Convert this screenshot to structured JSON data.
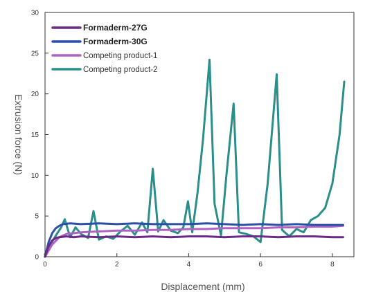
{
  "chart_data": {
    "type": "line",
    "xlabel": "Displacement (mm)",
    "ylabel": "Extrusion force (N)",
    "xlim": [
      0,
      8.6
    ],
    "ylim": [
      0,
      30
    ],
    "xticks": [
      "0",
      "2",
      "4",
      "6",
      "8"
    ],
    "yticks": [
      "0",
      "5",
      "10",
      "15",
      "20",
      "25",
      "30"
    ],
    "grid": false,
    "legend_position": "top-left",
    "series": [
      {
        "name": "Formaderm-27G",
        "color": "#6b2a86",
        "bold": true,
        "x": [
          0,
          0.1,
          0.2,
          0.3,
          0.4,
          0.6,
          0.8,
          1.0,
          1.5,
          2.0,
          2.5,
          3.0,
          3.5,
          4.0,
          4.5,
          5.0,
          5.5,
          6.0,
          6.5,
          7.0,
          7.5,
          8.0,
          8.3
        ],
        "y": [
          0,
          1.3,
          2.0,
          2.3,
          2.4,
          2.5,
          2.4,
          2.5,
          2.4,
          2.5,
          2.4,
          2.5,
          2.4,
          2.5,
          2.5,
          2.4,
          2.5,
          2.5,
          2.4,
          2.5,
          2.5,
          2.4,
          2.4
        ]
      },
      {
        "name": "Formaderm-30G",
        "color": "#2b4fa8",
        "bold": true,
        "x": [
          0,
          0.1,
          0.2,
          0.3,
          0.4,
          0.5,
          0.7,
          1.0,
          1.5,
          2.0,
          2.5,
          3.0,
          3.5,
          4.0,
          4.5,
          5.0,
          5.5,
          6.0,
          6.5,
          7.0,
          7.5,
          8.0,
          8.3
        ],
        "y": [
          0,
          1.8,
          2.9,
          3.5,
          3.8,
          4.0,
          4.1,
          4.0,
          4.1,
          4.0,
          4.1,
          4.0,
          4.0,
          4.0,
          4.1,
          4.0,
          3.9,
          4.0,
          3.9,
          4.0,
          3.9,
          3.9,
          3.9
        ]
      },
      {
        "name": "Competing product-1",
        "color": "#b062c4",
        "bold": false,
        "x": [
          0,
          0.2,
          0.4,
          0.6,
          1.0,
          1.5,
          2.0,
          2.5,
          3.0,
          3.5,
          4.0,
          4.5,
          5.0,
          5.5,
          6.0,
          6.5,
          7.0,
          7.5,
          8.0,
          8.3
        ],
        "y": [
          0,
          1.5,
          2.4,
          2.8,
          3.0,
          3.1,
          3.2,
          3.2,
          3.3,
          3.3,
          3.4,
          3.4,
          3.5,
          3.5,
          3.5,
          3.6,
          3.6,
          3.7,
          3.7,
          3.8
        ]
      },
      {
        "name": "Competing product-2",
        "color": "#2a8e8a",
        "bold": false,
        "x": [
          0,
          0.15,
          0.3,
          0.45,
          0.55,
          0.7,
          0.85,
          1.0,
          1.2,
          1.35,
          1.5,
          1.7,
          1.9,
          2.1,
          2.3,
          2.5,
          2.7,
          2.85,
          3.0,
          3.15,
          3.3,
          3.5,
          3.7,
          3.85,
          3.98,
          4.1,
          4.25,
          4.4,
          4.58,
          4.72,
          4.9,
          5.05,
          5.25,
          5.4,
          5.6,
          5.8,
          6.0,
          6.2,
          6.45,
          6.6,
          6.8,
          7.0,
          7.2,
          7.4,
          7.6,
          7.8,
          8.0,
          8.2,
          8.33
        ],
        "y": [
          0.3,
          1.5,
          2.6,
          3.6,
          4.6,
          2.4,
          3.6,
          2.8,
          2.3,
          5.6,
          2.1,
          2.5,
          2.2,
          3.1,
          3.8,
          2.7,
          4.2,
          3.0,
          10.8,
          3.1,
          4.5,
          3.2,
          2.9,
          3.6,
          6.8,
          3.0,
          8.0,
          14.5,
          24.2,
          6.5,
          2.6,
          10.0,
          18.8,
          3.0,
          2.8,
          2.5,
          1.8,
          9.0,
          22.4,
          3.3,
          2.5,
          3.4,
          3.0,
          4.5,
          5.0,
          6.0,
          9.0,
          15.0,
          21.5
        ]
      }
    ]
  }
}
